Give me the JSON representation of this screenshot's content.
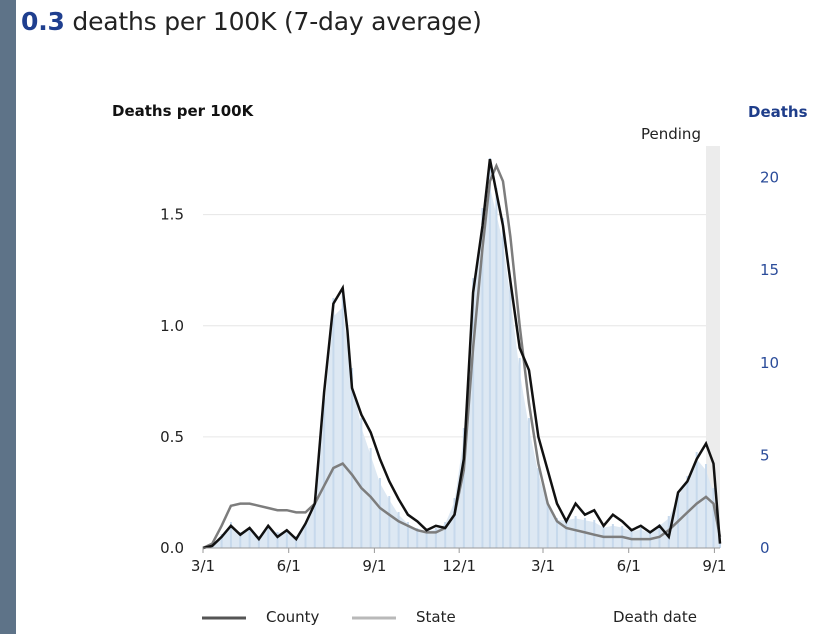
{
  "headline": {
    "value": "0.3",
    "text": " deaths per 100K (7-day average)"
  },
  "colors": {
    "county": "#111111",
    "state": "#7d7d7d",
    "bars": "#c7d9ec",
    "area": "#dde8f3",
    "pending": "#ececec",
    "right_axis": "#2b4c9a"
  },
  "chart_data": {
    "type": "line",
    "ylabel": "Deaths per 100K",
    "ylabel_right": "Deaths",
    "pending_label": "Pending",
    "xlabel": "Death date",
    "ylim": [
      0,
      1.8
    ],
    "ylim_right": [
      0,
      21.6
    ],
    "yticks": [
      {
        "v": 0,
        "label": "0.0"
      },
      {
        "v": 0.5,
        "label": "0.5"
      },
      {
        "v": 1.0,
        "label": "1.0"
      },
      {
        "v": 1.5,
        "label": "1.5"
      }
    ],
    "yticks_right": [
      {
        "v": 0,
        "label": "0"
      },
      {
        "v": 5,
        "label": "5"
      },
      {
        "v": 10,
        "label": "10"
      },
      {
        "v": 15,
        "label": "15"
      },
      {
        "v": 20,
        "label": "20"
      }
    ],
    "xlim": [
      0,
      555
    ],
    "xticks": [
      {
        "t": 0,
        "label": "3/1"
      },
      {
        "t": 92,
        "label": "6/1"
      },
      {
        "t": 184,
        "label": "9/1"
      },
      {
        "t": 275,
        "label": "12/1"
      },
      {
        "t": 365,
        "label": "3/1"
      },
      {
        "t": 457,
        "label": "6/1"
      },
      {
        "t": 549,
        "label": "9/1"
      }
    ],
    "pending_range": [
      540,
      555
    ],
    "series": [
      {
        "name": "County",
        "points": [
          [
            0,
            0.0
          ],
          [
            10,
            0.01
          ],
          [
            20,
            0.05
          ],
          [
            30,
            0.1
          ],
          [
            40,
            0.06
          ],
          [
            50,
            0.09
          ],
          [
            60,
            0.04
          ],
          [
            70,
            0.1
          ],
          [
            80,
            0.05
          ],
          [
            90,
            0.08
          ],
          [
            100,
            0.04
          ],
          [
            110,
            0.11
          ],
          [
            120,
            0.2
          ],
          [
            130,
            0.7
          ],
          [
            140,
            1.1
          ],
          [
            150,
            1.17
          ],
          [
            155,
            0.98
          ],
          [
            160,
            0.72
          ],
          [
            170,
            0.6
          ],
          [
            180,
            0.52
          ],
          [
            190,
            0.4
          ],
          [
            200,
            0.3
          ],
          [
            210,
            0.22
          ],
          [
            220,
            0.15
          ],
          [
            230,
            0.12
          ],
          [
            240,
            0.08
          ],
          [
            250,
            0.1
          ],
          [
            260,
            0.09
          ],
          [
            270,
            0.15
          ],
          [
            280,
            0.4
          ],
          [
            290,
            1.15
          ],
          [
            300,
            1.45
          ],
          [
            308,
            1.75
          ],
          [
            315,
            1.6
          ],
          [
            322,
            1.45
          ],
          [
            330,
            1.2
          ],
          [
            340,
            0.9
          ],
          [
            350,
            0.8
          ],
          [
            360,
            0.5
          ],
          [
            370,
            0.35
          ],
          [
            380,
            0.2
          ],
          [
            390,
            0.12
          ],
          [
            400,
            0.2
          ],
          [
            410,
            0.15
          ],
          [
            420,
            0.17
          ],
          [
            430,
            0.1
          ],
          [
            440,
            0.15
          ],
          [
            450,
            0.12
          ],
          [
            460,
            0.08
          ],
          [
            470,
            0.1
          ],
          [
            480,
            0.07
          ],
          [
            490,
            0.1
          ],
          [
            500,
            0.05
          ],
          [
            510,
            0.25
          ],
          [
            520,
            0.3
          ],
          [
            530,
            0.4
          ],
          [
            540,
            0.47
          ],
          [
            548,
            0.38
          ],
          [
            555,
            0.02
          ]
        ]
      },
      {
        "name": "State",
        "points": [
          [
            0,
            0.0
          ],
          [
            10,
            0.02
          ],
          [
            20,
            0.1
          ],
          [
            30,
            0.19
          ],
          [
            40,
            0.2
          ],
          [
            50,
            0.2
          ],
          [
            60,
            0.19
          ],
          [
            70,
            0.18
          ],
          [
            80,
            0.17
          ],
          [
            90,
            0.17
          ],
          [
            100,
            0.16
          ],
          [
            110,
            0.16
          ],
          [
            120,
            0.2
          ],
          [
            130,
            0.28
          ],
          [
            140,
            0.36
          ],
          [
            150,
            0.38
          ],
          [
            160,
            0.33
          ],
          [
            170,
            0.27
          ],
          [
            180,
            0.23
          ],
          [
            190,
            0.18
          ],
          [
            200,
            0.15
          ],
          [
            210,
            0.12
          ],
          [
            220,
            0.1
          ],
          [
            230,
            0.08
          ],
          [
            240,
            0.07
          ],
          [
            250,
            0.07
          ],
          [
            260,
            0.09
          ],
          [
            270,
            0.15
          ],
          [
            280,
            0.35
          ],
          [
            290,
            0.9
          ],
          [
            300,
            1.35
          ],
          [
            308,
            1.65
          ],
          [
            315,
            1.72
          ],
          [
            322,
            1.65
          ],
          [
            330,
            1.4
          ],
          [
            340,
            1.0
          ],
          [
            350,
            0.65
          ],
          [
            360,
            0.38
          ],
          [
            370,
            0.2
          ],
          [
            380,
            0.12
          ],
          [
            390,
            0.09
          ],
          [
            400,
            0.08
          ],
          [
            410,
            0.07
          ],
          [
            420,
            0.06
          ],
          [
            430,
            0.05
          ],
          [
            440,
            0.05
          ],
          [
            450,
            0.05
          ],
          [
            460,
            0.04
          ],
          [
            470,
            0.04
          ],
          [
            480,
            0.04
          ],
          [
            490,
            0.05
          ],
          [
            500,
            0.08
          ],
          [
            510,
            0.12
          ],
          [
            520,
            0.16
          ],
          [
            530,
            0.2
          ],
          [
            540,
            0.23
          ],
          [
            548,
            0.2
          ],
          [
            555,
            0.05
          ]
        ]
      }
    ],
    "daily_deaths": [
      [
        0,
        0
      ],
      [
        10,
        0.2
      ],
      [
        20,
        0.7
      ],
      [
        30,
        1.3
      ],
      [
        40,
        0.8
      ],
      [
        50,
        1.0
      ],
      [
        60,
        0.6
      ],
      [
        70,
        1.0
      ],
      [
        80,
        0.8
      ],
      [
        90,
        0.9
      ],
      [
        100,
        0.6
      ],
      [
        110,
        1.2
      ],
      [
        120,
        2.3
      ],
      [
        130,
        7.5
      ],
      [
        140,
        12.5
      ],
      [
        150,
        13.0
      ],
      [
        160,
        9.0
      ],
      [
        170,
        6.5
      ],
      [
        180,
        5.0
      ],
      [
        190,
        3.5
      ],
      [
        200,
        2.6
      ],
      [
        210,
        1.8
      ],
      [
        220,
        1.3
      ],
      [
        230,
        1.0
      ],
      [
        240,
        0.9
      ],
      [
        250,
        1.0
      ],
      [
        260,
        1.3
      ],
      [
        270,
        2.5
      ],
      [
        280,
        6.0
      ],
      [
        290,
        13.5
      ],
      [
        300,
        17.0
      ],
      [
        308,
        19.5
      ],
      [
        315,
        18.0
      ],
      [
        322,
        16.5
      ],
      [
        330,
        13.5
      ],
      [
        340,
        9.5
      ],
      [
        350,
        6.5
      ],
      [
        360,
        4.0
      ],
      [
        370,
        2.3
      ],
      [
        380,
        1.5
      ],
      [
        390,
        1.5
      ],
      [
        400,
        1.6
      ],
      [
        410,
        1.5
      ],
      [
        420,
        1.4
      ],
      [
        430,
        1.1
      ],
      [
        440,
        1.2
      ],
      [
        450,
        1.1
      ],
      [
        460,
        0.9
      ],
      [
        470,
        1.0
      ],
      [
        480,
        0.8
      ],
      [
        490,
        1.2
      ],
      [
        500,
        1.6
      ],
      [
        510,
        2.8
      ],
      [
        520,
        3.6
      ],
      [
        530,
        4.8
      ],
      [
        540,
        4.2
      ],
      [
        548,
        3.0
      ],
      [
        555,
        0.5
      ]
    ],
    "legend": [
      {
        "name": "County"
      },
      {
        "name": "State"
      }
    ]
  }
}
